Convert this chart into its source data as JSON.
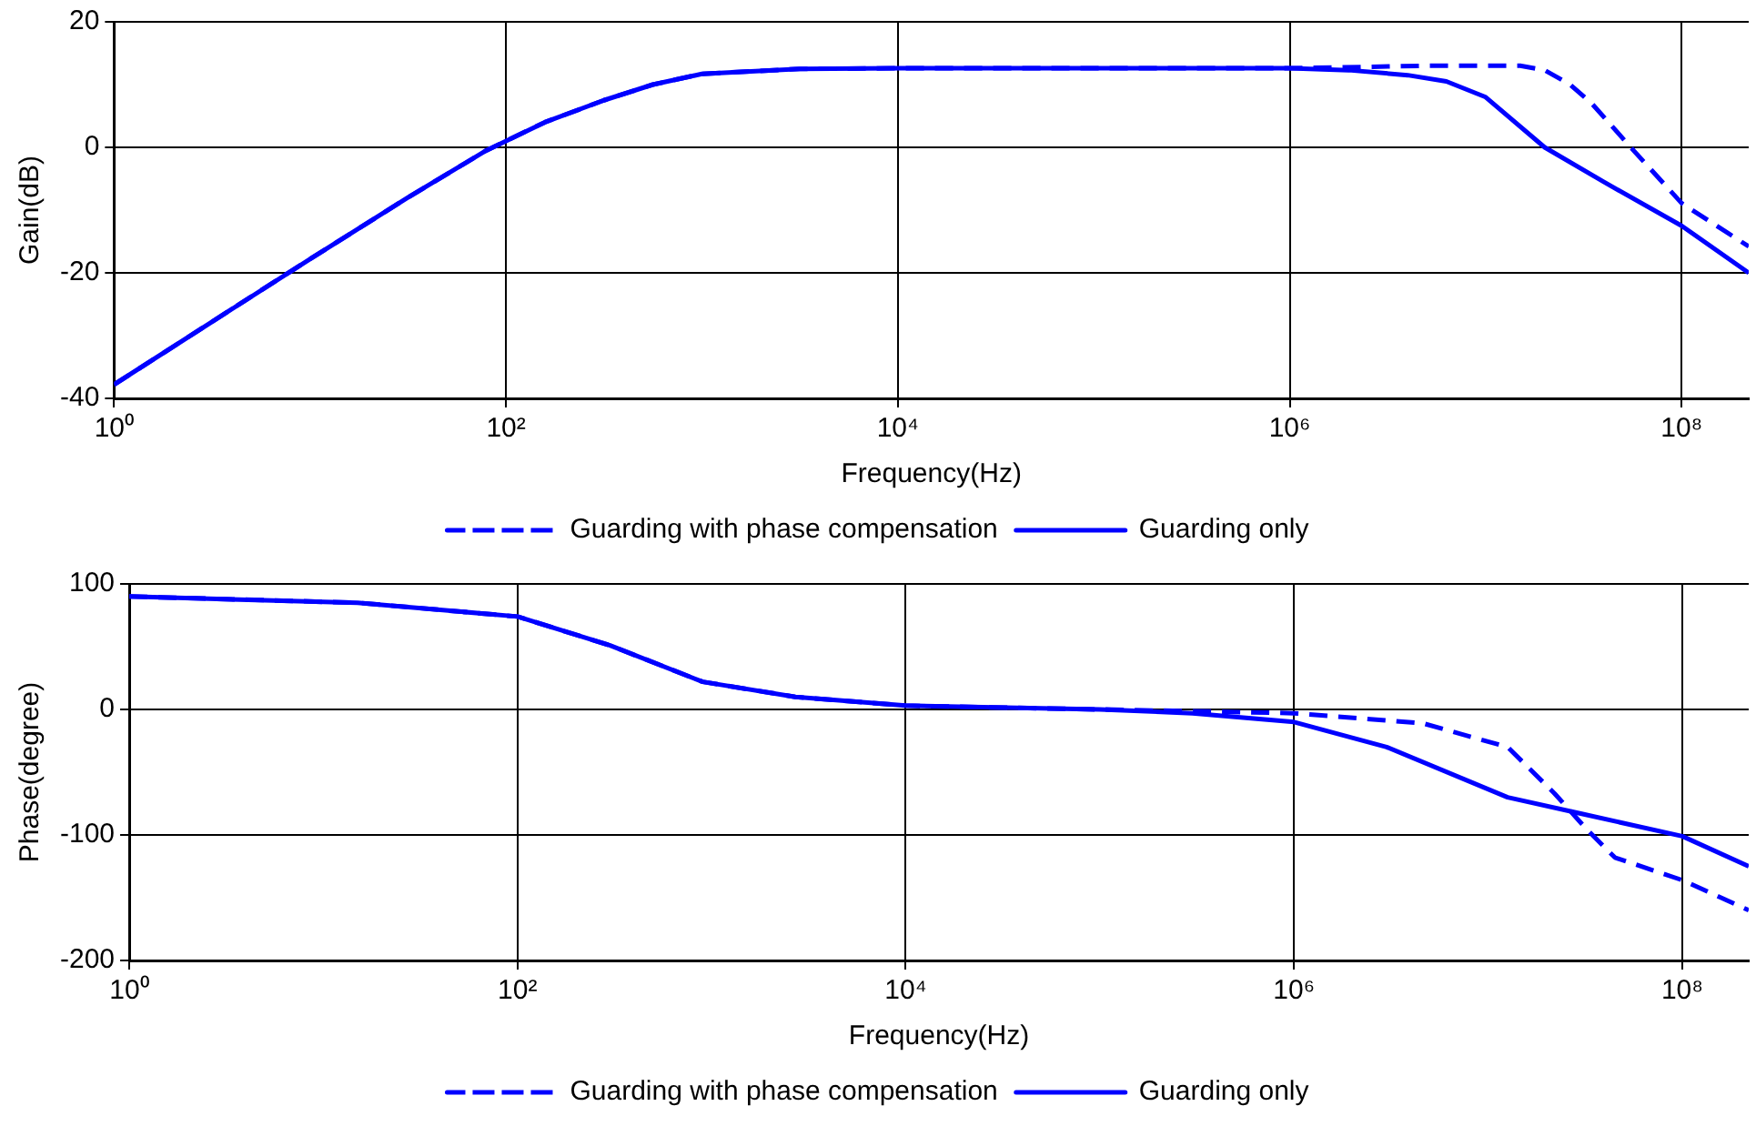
{
  "chart_data": [
    {
      "type": "line",
      "xlabel": "Frequency(Hz)",
      "ylabel": "Gain(dB)",
      "log": "x",
      "grid": true,
      "legend": "bottom",
      "xlim": [
        1,
        220000000
      ],
      "ylim": [
        -40,
        20
      ],
      "xticks": [
        {
          "value": 1,
          "label": "10⁰"
        },
        {
          "value": 100,
          "label": "10²"
        },
        {
          "value": 10000,
          "label": "10⁴"
        },
        {
          "value": 1000000,
          "label": "10⁶"
        },
        {
          "value": 100000000,
          "label": "10⁸"
        }
      ],
      "yticks": [
        -40,
        -20,
        0,
        20
      ],
      "series": [
        {
          "name": "Guarding with phase compensation",
          "color": "#0000ff",
          "line_style": "dashed",
          "x": [
            1,
            3.16,
            10,
            31.6,
            79.4,
            158,
            316,
            562,
            1000,
            3160,
            10000,
            100000,
            1000000,
            5000000,
            15000000,
            20000000,
            27000000,
            35000000,
            55000000,
            100000000,
            220000000
          ],
          "values": [
            -37.8,
            -27.8,
            -17.8,
            -8,
            -0.5,
            4,
            7.5,
            10,
            11.7,
            12.5,
            12.6,
            12.6,
            12.6,
            13,
            13,
            12.3,
            10,
            6.9,
            0,
            -8.9,
            -15.8
          ]
        },
        {
          "name": "Guarding only",
          "color": "#0000ff",
          "line_style": "solid",
          "x": [
            1,
            3.16,
            10,
            31.6,
            79.4,
            158,
            316,
            562,
            1000,
            3160,
            10000,
            100000,
            1000000,
            2000000,
            4000000,
            6300000,
            10000000,
            20000000,
            40000000,
            100000000,
            220000000
          ],
          "values": [
            -37.8,
            -27.8,
            -17.8,
            -8,
            -0.5,
            4,
            7.5,
            10,
            11.7,
            12.5,
            12.6,
            12.6,
            12.6,
            12.3,
            11.5,
            10.5,
            8,
            0,
            -5.5,
            -12.5,
            -20
          ]
        }
      ]
    },
    {
      "type": "line",
      "xlabel": "Frequency(Hz)",
      "ylabel": "Phase(degree)",
      "log": "x",
      "grid": true,
      "legend": "bottom",
      "xlim": [
        1,
        220000000
      ],
      "ylim": [
        -200,
        100
      ],
      "xticks": [
        {
          "value": 1,
          "label": "10⁰"
        },
        {
          "value": 100,
          "label": "10²"
        },
        {
          "value": 10000,
          "label": "10⁴"
        },
        {
          "value": 1000000,
          "label": "10⁶"
        },
        {
          "value": 100000000,
          "label": "10⁸"
        }
      ],
      "yticks": [
        -200,
        -100,
        0,
        100
      ],
      "series": [
        {
          "name": "Guarding with phase compensation",
          "color": "#0000ff",
          "line_style": "dashed",
          "x": [
            1,
            15,
            100,
            300,
            900,
            2700,
            10000,
            100000,
            1000000,
            4600000,
            12600000,
            22000000,
            32000000,
            45000000,
            100000000,
            220000000
          ],
          "values": [
            90,
            85,
            74,
            51,
            22,
            10,
            3,
            0,
            -3,
            -11,
            -30,
            -67,
            -95,
            -118,
            -136,
            -160
          ]
        },
        {
          "name": "Guarding only",
          "color": "#0000ff",
          "line_style": "solid",
          "x": [
            1,
            15,
            100,
            300,
            900,
            2700,
            10000,
            100000,
            300000,
            1000000,
            3000000,
            12600000,
            30000000,
            100000000,
            220000000
          ],
          "values": [
            90,
            85,
            74,
            51,
            22,
            10,
            3,
            0,
            -3,
            -10,
            -30,
            -70,
            -83,
            -101,
            -125
          ]
        }
      ]
    }
  ]
}
